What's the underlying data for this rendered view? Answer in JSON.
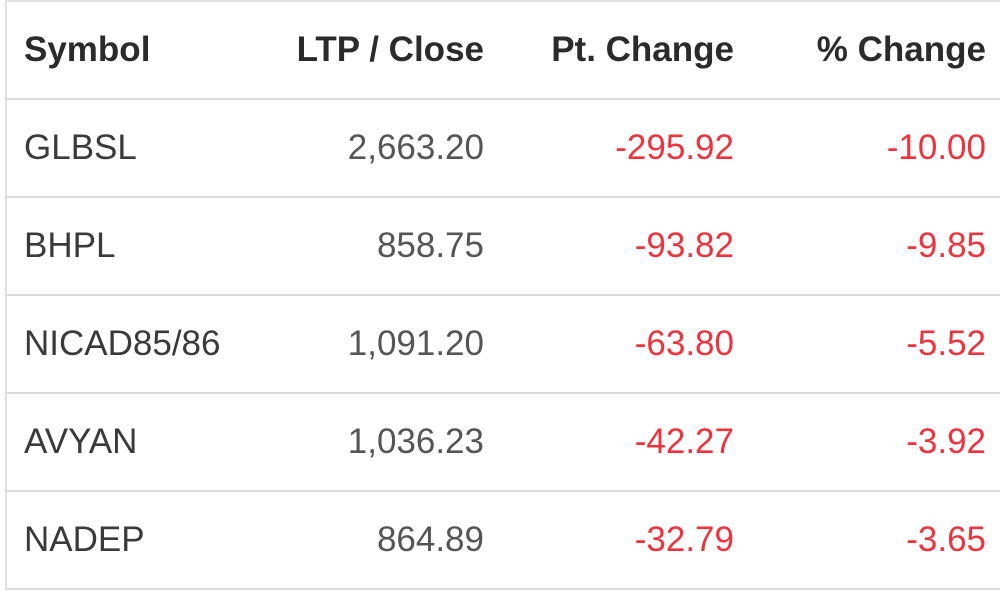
{
  "table": {
    "header": [
      "Symbol",
      "LTP / Close",
      "Pt. Change",
      "% Change"
    ],
    "rows": [
      [
        "GLBSL",
        "2,663.20",
        "-295.92",
        "-10.00"
      ],
      [
        "BHPL",
        "858.75",
        "-93.82",
        "-9.85"
      ],
      [
        "NICAD85/86",
        "1,091.20",
        "-63.80",
        "-5.52"
      ],
      [
        "AVYAN",
        "1,036.23",
        "-42.27",
        "-3.92"
      ],
      [
        "NADEP",
        "864.89",
        "-32.79",
        "-3.65"
      ]
    ]
  }
}
